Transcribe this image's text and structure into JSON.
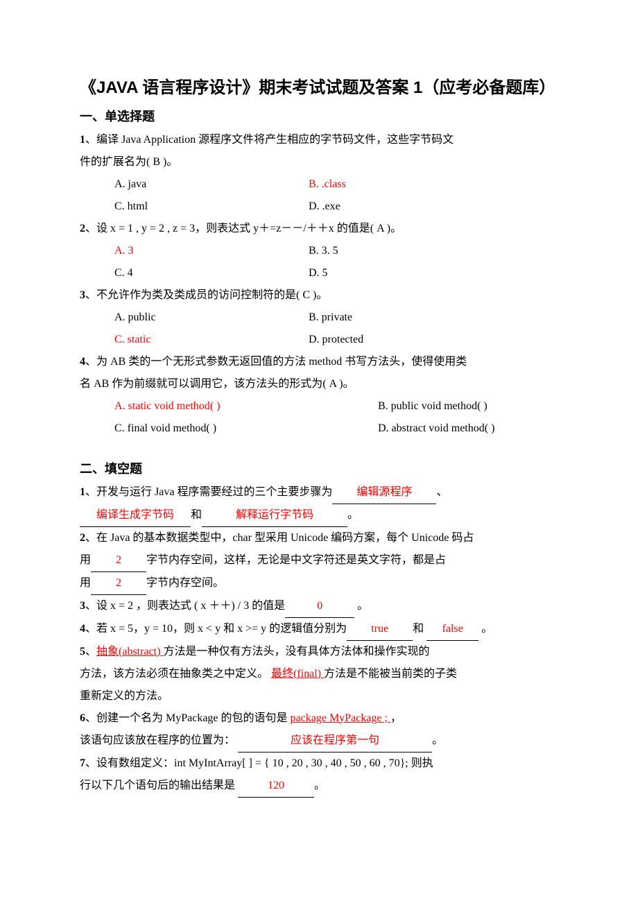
{
  "colors": {
    "text": "#000000",
    "answer": "#ff0000",
    "bg": "#ffffff"
  },
  "fonts": {
    "body_family": "SimSun",
    "heading_family": "SimHei",
    "body_size_pt": 12,
    "title_size_pt": 18,
    "section_size_pt": 14
  },
  "title": "《JAVA 语言程序设计》期末考试试题及答案 1（应考必备题库）",
  "section1": {
    "heading": "一、单选择题",
    "q1": {
      "num": "1",
      "stem_a": "、编译 Java   Application  源程序文件将产生相应的字节码文件，这些字节码文",
      "stem_b": "件的扩展名为(      B      )。",
      "optA": "A. java",
      "optB": "B. .class",
      "optC": "C. html",
      "optD": "D. .exe",
      "correct": "B"
    },
    "q2": {
      "num": "2",
      "stem": "、设  x = 1 , y = 2 , z = 3，则表达式   y＋=z－－/＋＋x   的值是(        A    )。",
      "optA": "A. 3",
      "optB": "B. 3. 5",
      "optC": "C. 4",
      "optD": "D. 5",
      "correct": "A"
    },
    "q3": {
      "num": "3",
      "stem": "、不允许作为类及类成员的访问控制符的是(         C )。",
      "optA": "A. public",
      "optB": "B. private",
      "optC": "C. static",
      "optD": "D. protected",
      "correct": "C"
    },
    "q4": {
      "num": "4",
      "stem_a": "、为 AB 类的一个无形式参数无返回值的方法 method 书写方法头，使得使用类",
      "stem_b": "名 AB 作为前缀就可以调用它，该方法头的形式为(       A    )。",
      "optA": "A. static void method( )",
      "optB": "B. public void method( )",
      "optC": "C. final void method( )",
      "optD": "D. abstract void method( )",
      "correct": "A"
    }
  },
  "section2": {
    "heading": "二、填空题",
    "q1": {
      "num": "1",
      "pre": "、开发与运行 Java 程序需要经过的三个主要步骤为",
      "blank1": "编辑源程序",
      "sep1": "、",
      "blank2": "编译生成字节码",
      "mid": "和",
      "blank3": "解释运行字节码",
      "end": "。",
      "blank1_w": 150,
      "blank2_w": 160,
      "blank3_w": 210
    },
    "q2": {
      "num": "2",
      "line1": "、在 Java 的基本数据类型中，char 型采用 Unicode 编码方案，每个 Unicode 码占",
      "line2a": "用",
      "blank1": "2",
      "line2b": "字节内存空间，这样，无论是中文字符还是英文字符，都是占",
      "line3a": "用",
      "blank2": "2",
      "line3b": "字节内存空间。",
      "blank_w": 80
    },
    "q3": {
      "num": "3",
      "pre": "、设  x = 2  ，则表达式  ( x ＋＋) / 3  的值是",
      "blank": "0",
      "end": "  。",
      "blank_w": 100
    },
    "q4": {
      "num": "4",
      "pre": "、若 x = 5，y = 10，则 x < y 和 x >= y 的逻辑值分别为",
      "blank1": "true",
      "mid": "和  ",
      "blank2": "false",
      "end": "  。",
      "blank1_w": 95,
      "blank2_w": 75
    },
    "q5": {
      "num": "5",
      "pre": "、",
      "blank1": "抽象(abstract)  ",
      "line1b": "  方法是一种仅有方法头，没有具体方法体和操作实现的",
      "line2a": "方法，该方法必须在抽象类之中定义。  ",
      "blank2": "最终(final) ",
      "line2b": "方法是不能被当前类的子类",
      "line3": "重新定义的方法。",
      "blank1_w": 130
    },
    "q6": {
      "num": "6",
      "pre": "、创建一个名为  MyPackage  的包的语句是 ",
      "blank1": "package      MyPackage ;    ",
      "end1": "，",
      "line2a": "该语句应该放在程序的位置为：  ",
      "blank2": "应该在程序第一句",
      "end2": "。",
      "blank2_w": 280
    },
    "q7": {
      "num": "7",
      "line1": "、设有数组定义：int      MyIntArray[  ] = { 10 , 20 , 30 , 40 , 50 , 60 , 70};      则执",
      "line2a": "行以下几个语句后的输出结果是   ",
      "blank": "120",
      "end": "。",
      "blank_w": 110
    }
  }
}
